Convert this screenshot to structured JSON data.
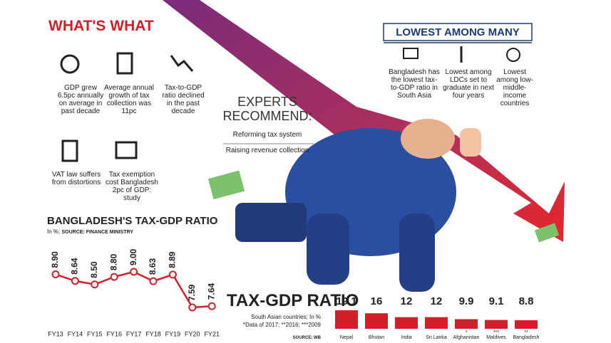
{
  "header": {
    "title": "WHAT'S WHAT"
  },
  "facts": [
    "GDP grew 6.5pc annually on average in past decade",
    "Average annual growth of tax collection was 11pc",
    "Tax-to-GDP ratio declined in the past decade",
    "VAT law suffers from distortions",
    "Tax exemption cost Bangladesh 2pc of GDP: study"
  ],
  "lowest": {
    "title": "LOWEST AMONG MANY",
    "items": [
      "Bangladesh has the lowest tax-to-GDP ratio in South Asia",
      "Lowest among LDCs set to graduate in next four years",
      "Lowest among low-middle-income countries"
    ]
  },
  "experts": {
    "title": "EXPERTS RECOMMEND:",
    "items": [
      "Reforming tax system",
      "Raising revenue collection"
    ]
  },
  "chart_data": [
    {
      "type": "line",
      "title": "BANGLADESH'S TAX-GDP RATIO",
      "subtitle": "In %;",
      "source": "SOURCE: FINANCE MINISTRY",
      "categories": [
        "FY13",
        "FY14",
        "FY15",
        "FY16",
        "FY17",
        "FY18",
        "FY19",
        "FY20",
        "FY21"
      ],
      "values": [
        8.9,
        8.64,
        8.5,
        8.8,
        9.0,
        8.63,
        8.89,
        7.59,
        7.64
      ],
      "value_labels": [
        "8.90",
        "8.64",
        "8.50",
        "8.80",
        "9.00",
        "8.63",
        "8.89",
        "7.59",
        "7.64"
      ],
      "color": "#d0202a"
    },
    {
      "type": "bar",
      "title": "TAX-GDP RATIO",
      "subtitle": "South Asian countries; In %",
      "note": "*Data of 2017; **2016; ***2009",
      "source": "SOURCE: WB",
      "categories": [
        "Nepal",
        "Bhutan",
        "India",
        "Sri Lanka",
        "Afghanistan",
        "Maldives",
        "Bangladesh"
      ],
      "footnote_marks": {
        "4": "*",
        "5": "***",
        "6": "**"
      },
      "values": [
        19.1,
        16,
        12,
        12,
        9.9,
        9.1,
        8.8
      ],
      "color": "#d0202a"
    }
  ]
}
